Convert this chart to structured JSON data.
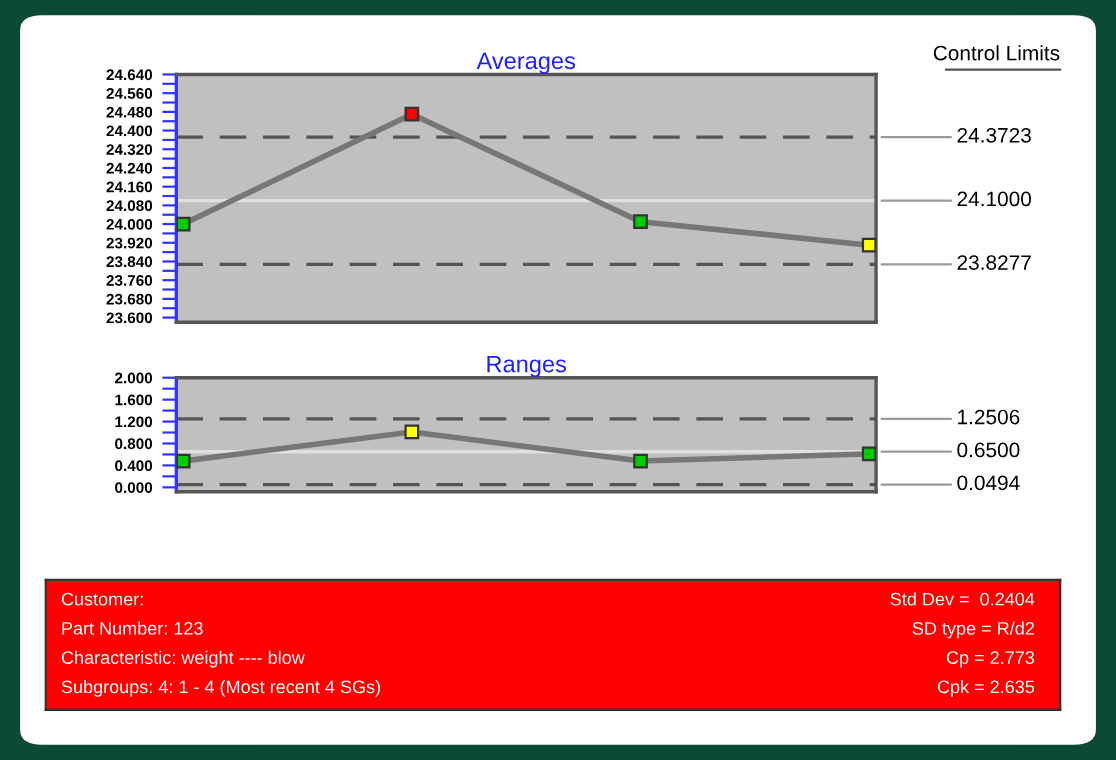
{
  "chart_data": [
    {
      "type": "line",
      "title": "Averages",
      "categories": [
        null,
        null,
        null,
        null
      ],
      "series": [
        {
          "color": "#777777",
          "colors": [
            "#00cc00",
            "#ff0000",
            "#00cc00",
            "#ffff00"
          ],
          "values": [
            24.0,
            24.47,
            24.01,
            23.91
          ]
        }
      ],
      "ylim": [
        23.58,
        24.64
      ],
      "yticks": [
        {
          "value": 24.64,
          "label": "24.640"
        },
        {
          "value": 24.6,
          "label": null
        },
        {
          "value": 24.56,
          "label": "24.560"
        },
        {
          "value": 24.52,
          "label": null
        },
        {
          "value": 24.48,
          "label": "24.480"
        },
        {
          "value": 24.44,
          "label": null
        },
        {
          "value": 24.4,
          "label": "24.400"
        },
        {
          "value": 24.36,
          "label": null
        },
        {
          "value": 24.32,
          "label": "24.320"
        },
        {
          "value": 24.28,
          "label": null
        },
        {
          "value": 24.24,
          "label": "24.240"
        },
        {
          "value": 24.2,
          "label": null
        },
        {
          "value": 24.16,
          "label": "24.160"
        },
        {
          "value": 24.12,
          "label": null
        },
        {
          "value": 24.08,
          "label": "24.080"
        },
        {
          "value": 24.04,
          "label": null
        },
        {
          "value": 24.0,
          "label": "24.000"
        },
        {
          "value": 23.96,
          "label": null
        },
        {
          "value": 23.92,
          "label": "23.920"
        },
        {
          "value": 23.88,
          "label": null
        },
        {
          "value": 23.84,
          "label": "23.840"
        },
        {
          "value": 23.8,
          "label": null
        },
        {
          "value": 23.76,
          "label": "23.760"
        },
        {
          "value": 23.72,
          "label": null
        },
        {
          "value": 23.68,
          "label": "23.680"
        },
        {
          "value": 23.64,
          "label": null
        },
        {
          "value": 23.6,
          "label": "23.600"
        }
      ],
      "ref_lines": [
        {
          "axis": "y",
          "value": 24.3723,
          "label": "24.3723",
          "color": "#555555",
          "line_style": "dashed"
        },
        {
          "axis": "y",
          "value": 24.1,
          "label": "24.1000",
          "color": "#e0e0e0",
          "line_style": "solid"
        },
        {
          "axis": "y",
          "value": 23.8277,
          "label": "23.8277",
          "color": "#555555",
          "line_style": "dashed"
        }
      ],
      "annotations": [
        "Control Limits"
      ],
      "tick_labels": "y",
      "marker": "square",
      "line_style": "solid",
      "grid": false,
      "legend": false
    },
    {
      "type": "line",
      "title": "Ranges",
      "categories": [
        null,
        null,
        null,
        null
      ],
      "series": [
        {
          "color": "#777777",
          "colors": [
            "#00cc00",
            "#ffff00",
            "#00cc00",
            "#00cc00"
          ],
          "values": [
            0.48,
            1.01,
            0.48,
            0.61
          ]
        }
      ],
      "ylim": [
        -0.08,
        2.0
      ],
      "yticks": [
        {
          "value": 2.0,
          "label": "2.000"
        },
        {
          "value": 1.8,
          "label": null
        },
        {
          "value": 1.6,
          "label": "1.600"
        },
        {
          "value": 1.4,
          "label": null
        },
        {
          "value": 1.2,
          "label": "1.200"
        },
        {
          "value": 1.0,
          "label": null
        },
        {
          "value": 0.8,
          "label": "0.800"
        },
        {
          "value": 0.6,
          "label": null
        },
        {
          "value": 0.4,
          "label": "0.400"
        },
        {
          "value": 0.2,
          "label": null
        },
        {
          "value": 0.0,
          "label": "0.000"
        }
      ],
      "ref_lines": [
        {
          "axis": "y",
          "value": 1.2506,
          "label": "1.2506",
          "color": "#555555",
          "line_style": "dashed"
        },
        {
          "axis": "y",
          "value": 0.65,
          "label": "0.6500",
          "color": "#e0e0e0",
          "line_style": "solid"
        },
        {
          "axis": "y",
          "value": 0.0494,
          "label": "0.0494",
          "color": "#555555",
          "line_style": "dashed"
        }
      ],
      "tick_labels": "y",
      "marker": "square",
      "line_style": "solid",
      "grid": false,
      "legend": false
    },
    {
      "type": "other",
      "annotations": [
        "Customer:",
        "Part Number: 123",
        "Characteristic: weight ---- blow",
        "Subgroups: 4: 1 - 4 (Most recent 4 SGs)",
        "Std Dev =  0.2404",
        "SD type = R/d2",
        "Cp = 2.773",
        "Cpk = 2.635"
      ]
    }
  ]
}
